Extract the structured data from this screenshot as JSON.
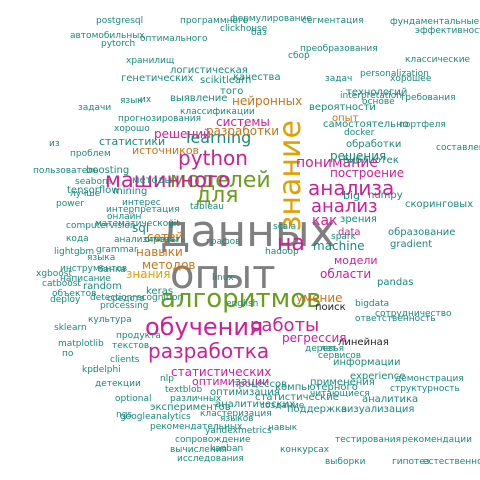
{
  "palette": {
    "c1": "#7f7f7f",
    "c2": "#6b9e1f",
    "c3": "#e0a000",
    "c4": "#cc1f9a",
    "c5": "#1b8a7a",
    "c6": "#222222",
    "c7": "#c7741a",
    "c8": "#8aa81a",
    "c9": "#2a9a5a",
    "c10": "#555555"
  },
  "words": [
    {
      "text": "данных",
      "color": "c1",
      "vertical": false
    },
    {
      "text": "опыт",
      "color": "c1",
      "vertical": false
    },
    {
      "text": "знание",
      "color": "c3",
      "vertical": true
    },
    {
      "text": "алгоритмов",
      "color": "c2",
      "vertical": false
    },
    {
      "text": "обучения",
      "color": "c4",
      "vertical": false
    },
    {
      "text": "моделей",
      "color": "c2",
      "vertical": false
    },
    {
      "text": "машинного",
      "color": "c4",
      "vertical": false
    },
    {
      "text": "python",
      "color": "c4",
      "vertical": false
    },
    {
      "text": "для",
      "color": "c2",
      "vertical": false
    },
    {
      "text": "анализа",
      "color": "c4",
      "vertical": false
    },
    {
      "text": "анализ",
      "color": "c4",
      "vertical": false
    },
    {
      "text": "разработка",
      "color": "c4",
      "vertical": false
    },
    {
      "text": "работы",
      "color": "c4",
      "vertical": false
    },
    {
      "text": "на",
      "color": "c4",
      "vertical": false
    },
    {
      "text": "как",
      "color": "c4",
      "vertical": false
    },
    {
      "text": "понимание",
      "color": "c4",
      "vertical": false
    },
    {
      "text": "построение",
      "color": "c4",
      "vertical": false
    },
    {
      "text": "learning",
      "color": "c5",
      "vertical": false
    },
    {
      "text": "системы",
      "color": "c4",
      "vertical": false
    },
    {
      "text": "решения",
      "color": "c5",
      "vertical": false
    },
    {
      "text": "решений",
      "color": "c4",
      "vertical": false
    },
    {
      "text": "разработки",
      "color": "c7",
      "vertical": false
    },
    {
      "text": "нейронных",
      "color": "c7",
      "vertical": false
    },
    {
      "text": "опыт",
      "color": "c7",
      "vertical": false
    },
    {
      "text": "регрессия",
      "color": "c4",
      "vertical": false
    },
    {
      "text": "области",
      "color": "c4",
      "vertical": false
    },
    {
      "text": "умение",
      "color": "c7",
      "vertical": false
    },
    {
      "text": "модели",
      "color": "c4",
      "vertical": false
    },
    {
      "text": "machine",
      "color": "c5",
      "vertical": false
    },
    {
      "text": "sql",
      "color": "c5",
      "vertical": false
    },
    {
      "text": "сетей",
      "color": "c7",
      "vertical": false
    },
    {
      "text": "методов",
      "color": "c7",
      "vertical": false
    },
    {
      "text": "навыки",
      "color": "c7",
      "vertical": false
    },
    {
      "text": "знания",
      "color": "c3",
      "vertical": false
    },
    {
      "text": "статистических",
      "color": "c4",
      "vertical": false
    },
    {
      "text": "оптимизации",
      "color": "c4",
      "vertical": false
    },
    {
      "text": "data",
      "color": "c4",
      "vertical": false
    },
    {
      "text": "big",
      "color": "c5",
      "vertical": false
    },
    {
      "text": "numpy",
      "color": "c5",
      "vertical": false
    },
    {
      "text": "поиск",
      "color": "c6",
      "vertical": false
    },
    {
      "text": "источников",
      "color": "c7",
      "vertical": false
    },
    {
      "text": "методы",
      "color": "c5",
      "vertical": false
    },
    {
      "text": "статистики",
      "color": "c5",
      "vertical": false
    },
    {
      "text": "mining",
      "color": "c5",
      "vertical": false
    },
    {
      "text": "boosting",
      "color": "c5",
      "vertical": false
    },
    {
      "text": "tensorflow",
      "color": "c5",
      "vertical": false
    },
    {
      "text": "самостоятельно",
      "color": "c5",
      "vertical": false
    },
    {
      "text": "вероятности",
      "color": "c5",
      "vertical": false
    },
    {
      "text": "библиотек",
      "color": "c5",
      "vertical": false
    },
    {
      "text": "обработки",
      "color": "c5",
      "vertical": false
    },
    {
      "text": "зрения",
      "color": "c5",
      "vertical": false
    },
    {
      "text": "образование",
      "color": "c5",
      "vertical": false
    },
    {
      "text": "скоринговых",
      "color": "c5",
      "vertical": false
    },
    {
      "text": "экспериментов",
      "color": "c5",
      "vertical": false
    },
    {
      "text": "процессов",
      "color": "c5",
      "vertical": false
    },
    {
      "text": "experience",
      "color": "c5",
      "vertical": false
    },
    {
      "text": "линейная",
      "color": "c6",
      "vertical": false
    },
    {
      "text": "информации",
      "color": "c5",
      "vertical": false
    },
    {
      "text": "статистические",
      "color": "c5",
      "vertical": false
    },
    {
      "text": "оптимизация",
      "color": "c5",
      "vertical": false
    },
    {
      "text": "аналитических",
      "color": "c5",
      "vertical": false
    },
    {
      "text": "поддержка",
      "color": "c5",
      "vertical": false
    },
    {
      "text": "компьютерного",
      "color": "c5",
      "vertical": false
    },
    {
      "text": "применения",
      "color": "c5",
      "vertical": false
    },
    {
      "text": "аналитика",
      "color": "c5",
      "vertical": false
    },
    {
      "text": "генетических",
      "color": "c5",
      "vertical": false
    },
    {
      "text": "логистическая",
      "color": "c5",
      "vertical": false
    },
    {
      "text": "качества",
      "color": "c5",
      "vertical": false
    },
    {
      "text": "того",
      "color": "c5",
      "vertical": false
    },
    {
      "text": "scikitlearn",
      "color": "c5",
      "vertical": false
    },
    {
      "text": "выявление",
      "color": "c5",
      "vertical": false
    },
    {
      "text": "технологий",
      "color": "c5",
      "vertical": false
    },
    {
      "text": "keras",
      "color": "c5",
      "vertical": false
    },
    {
      "text": "random",
      "color": "c5",
      "vertical": false
    },
    {
      "text": "pandas",
      "color": "c5",
      "vertical": false
    },
    {
      "text": "gradient",
      "color": "c5",
      "vertical": false
    },
    {
      "text": "визуализация",
      "color": "c5",
      "vertical": false
    },
    {
      "text": "pytorch",
      "color": "c5",
      "vertical": false
    },
    {
      "text": "clickhouse",
      "color": "c5",
      "vertical": false
    },
    {
      "text": "postgresql",
      "color": "c5",
      "vertical": false
    },
    {
      "text": "программного",
      "color": "c5",
      "vertical": false
    },
    {
      "text": "формулирование",
      "color": "c5",
      "vertical": false
    },
    {
      "text": "сегментация",
      "color": "c5",
      "vertical": false
    },
    {
      "text": "фундаментальные",
      "color": "c5",
      "vertical": false
    },
    {
      "text": "автомобильных",
      "color": "c5",
      "vertical": false
    },
    {
      "text": "оптимального",
      "color": "c5",
      "vertical": false
    },
    {
      "text": "читающиеся",
      "color": "c5",
      "vertical": false
    },
    {
      "text": "эффективность",
      "color": "c5",
      "vertical": false
    },
    {
      "text": "классические",
      "color": "c5",
      "vertical": false
    },
    {
      "text": "хорошее",
      "color": "c5",
      "vertical": false
    },
    {
      "text": "interpretation",
      "color": "c5",
      "vertical": false
    },
    {
      "text": "bigdata",
      "color": "c5",
      "vertical": false
    },
    {
      "text": "сотрудничество",
      "color": "c5",
      "vertical": false
    },
    {
      "text": "ответственность",
      "color": "c5",
      "vertical": false
    },
    {
      "text": "personalization",
      "color": "c5",
      "vertical": false
    },
    {
      "text": "преобразования",
      "color": "c5",
      "vertical": false
    },
    {
      "text": "требования",
      "color": "c5",
      "vertical": false
    },
    {
      "text": "структурность",
      "color": "c5",
      "vertical": false
    },
    {
      "text": "демонстрация",
      "color": "c5",
      "vertical": false
    },
    {
      "text": "тестирования",
      "color": "c5",
      "vertical": false
    },
    {
      "text": "рекомендательных",
      "color": "c5",
      "vertical": false
    },
    {
      "text": "детекции",
      "color": "c5",
      "vertical": false
    },
    {
      "text": "кластеризация",
      "color": "c5",
      "vertical": false
    },
    {
      "text": "сопровождение",
      "color": "c5",
      "vertical": false
    },
    {
      "text": "классификации",
      "color": "c5",
      "vertical": false
    },
    {
      "text": "прогнозирования",
      "color": "c5",
      "vertical": false
    },
    {
      "text": "язык",
      "color": "c5",
      "vertical": false
    },
    {
      "text": "хорошо",
      "color": "c5",
      "vertical": false
    },
    {
      "text": "задачи",
      "color": "c5",
      "vertical": false
    },
    {
      "text": "проблем",
      "color": "c5",
      "vertical": false
    },
    {
      "text": "интерпретация",
      "color": "c5",
      "vertical": false
    },
    {
      "text": "интерес",
      "color": "c5",
      "vertical": false
    },
    {
      "text": "математической",
      "color": "c5",
      "vertical": false
    },
    {
      "text": "анализировать",
      "color": "c5",
      "vertical": false
    },
    {
      "text": "создание",
      "color": "c5",
      "vertical": false
    },
    {
      "text": "различных",
      "color": "c5",
      "vertical": false
    },
    {
      "text": "деревья",
      "color": "c5",
      "vertical": false
    },
    {
      "text": "сервисов",
      "color": "c5",
      "vertical": false
    },
    {
      "text": "навык",
      "color": "c5",
      "vertical": false
    },
    {
      "text": "лет",
      "color": "c5",
      "vertical": false
    },
    {
      "text": "хранилищ",
      "color": "c5",
      "vertical": false
    },
    {
      "text": "средств",
      "color": "c5",
      "vertical": false
    },
    {
      "text": "продукта",
      "color": "c5",
      "vertical": false
    },
    {
      "text": "текстов",
      "color": "c5",
      "vertical": false
    },
    {
      "text": "культура",
      "color": "c5",
      "vertical": false
    },
    {
      "text": "объектов",
      "color": "c5",
      "vertical": false
    },
    {
      "text": "банка",
      "color": "c5",
      "vertical": false
    },
    {
      "text": "языка",
      "color": "c5",
      "vertical": false
    },
    {
      "text": "языков",
      "color": "c5",
      "vertical": false
    },
    {
      "text": "конкурсах",
      "color": "c5",
      "vertical": false
    },
    {
      "text": "выборки",
      "color": "c5",
      "vertical": false
    },
    {
      "text": "гипотез",
      "color": "c5",
      "vertical": false
    },
    {
      "text": "естественного",
      "color": "c5",
      "vertical": false
    },
    {
      "text": "вычисления",
      "color": "c5",
      "vertical": false
    },
    {
      "text": "рекомендации",
      "color": "c5",
      "vertical": false
    },
    {
      "text": "исследования",
      "color": "c5",
      "vertical": false
    },
    {
      "text": "yandexmetrics",
      "color": "c5",
      "vertical": false
    },
    {
      "text": "googleanalytics",
      "color": "c5",
      "vertical": false
    },
    {
      "text": "kanban",
      "color": "c5",
      "vertical": false
    },
    {
      "text": "optional",
      "color": "c5",
      "vertical": false
    },
    {
      "text": "clients",
      "color": "c5",
      "vertical": false
    },
    {
      "text": "delphi",
      "color": "c5",
      "vertical": false
    },
    {
      "text": "computervision",
      "color": "c5",
      "vertical": false
    },
    {
      "text": "grammar",
      "color": "c5",
      "vertical": false
    },
    {
      "text": "processing",
      "color": "c5",
      "vertical": false
    },
    {
      "text": "detectionrecognition",
      "color": "c5",
      "vertical": false
    },
    {
      "text": "deploy",
      "color": "c5",
      "vertical": false
    },
    {
      "text": "кода",
      "color": "c5",
      "vertical": false
    },
    {
      "text": "инструментов",
      "color": "c5",
      "vertical": false
    },
    {
      "text": "написание",
      "color": "c5",
      "vertical": false
    },
    {
      "text": "sklearn",
      "color": "c5",
      "vertical": false
    },
    {
      "text": "xgboost",
      "color": "c5",
      "vertical": false
    },
    {
      "text": "lightgbm",
      "color": "c5",
      "vertical": false
    },
    {
      "text": "catboost",
      "color": "c5",
      "vertical": false
    },
    {
      "text": "matplotlib",
      "color": "c5",
      "vertical": false
    },
    {
      "text": "seaborn",
      "color": "c5",
      "vertical": false
    },
    {
      "text": "power",
      "color": "c5",
      "vertical": false
    },
    {
      "text": "tableau",
      "color": "c5",
      "vertical": false
    },
    {
      "text": "графов",
      "color": "c5",
      "vertical": false
    },
    {
      "text": "hadoop",
      "color": "c5",
      "vertical": false
    },
    {
      "text": "spark",
      "color": "c5",
      "vertical": false
    },
    {
      "text": "scala",
      "color": "c5",
      "vertical": false
    },
    {
      "text": "docker",
      "color": "c5",
      "vertical": false
    },
    {
      "text": "git",
      "color": "c5",
      "vertical": false
    },
    {
      "text": "linux",
      "color": "c5",
      "vertical": false
    },
    {
      "text": "english",
      "color": "c5",
      "vertical": false
    },
    {
      "text": "nlp",
      "color": "c5",
      "vertical": false
    },
    {
      "text": "textblob",
      "color": "c5",
      "vertical": false
    },
    {
      "text": "ngs",
      "color": "c5",
      "vertical": false
    },
    {
      "text": "kpi",
      "color": "c5",
      "vertical": false
    },
    {
      "text": "из",
      "color": "c5",
      "vertical": false
    },
    {
      "text": "по",
      "color": "c5",
      "vertical": false
    },
    {
      "text": "их",
      "color": "c5",
      "vertical": false
    },
    {
      "text": "баз",
      "color": "c5",
      "vertical": false
    },
    {
      "text": "сбор",
      "color": "c5",
      "vertical": false
    },
    {
      "text": "задач",
      "color": "c5",
      "vertical": false
    },
    {
      "text": "основе",
      "color": "c5",
      "vertical": false
    },
    {
      "text": "портфеля",
      "color": "c5",
      "vertical": false
    },
    {
      "text": "составления",
      "color": "c5",
      "vertical": false
    },
    {
      "text": "пользователь",
      "color": "c5",
      "vertical": false
    },
    {
      "text": "лучше",
      "color": "c5",
      "vertical": false
    },
    {
      "text": "онлайн",
      "color": "c5",
      "vertical": false
    },
    {
      "text": "отчеты",
      "color": "c5",
      "vertical": false
    }
  ]
}
